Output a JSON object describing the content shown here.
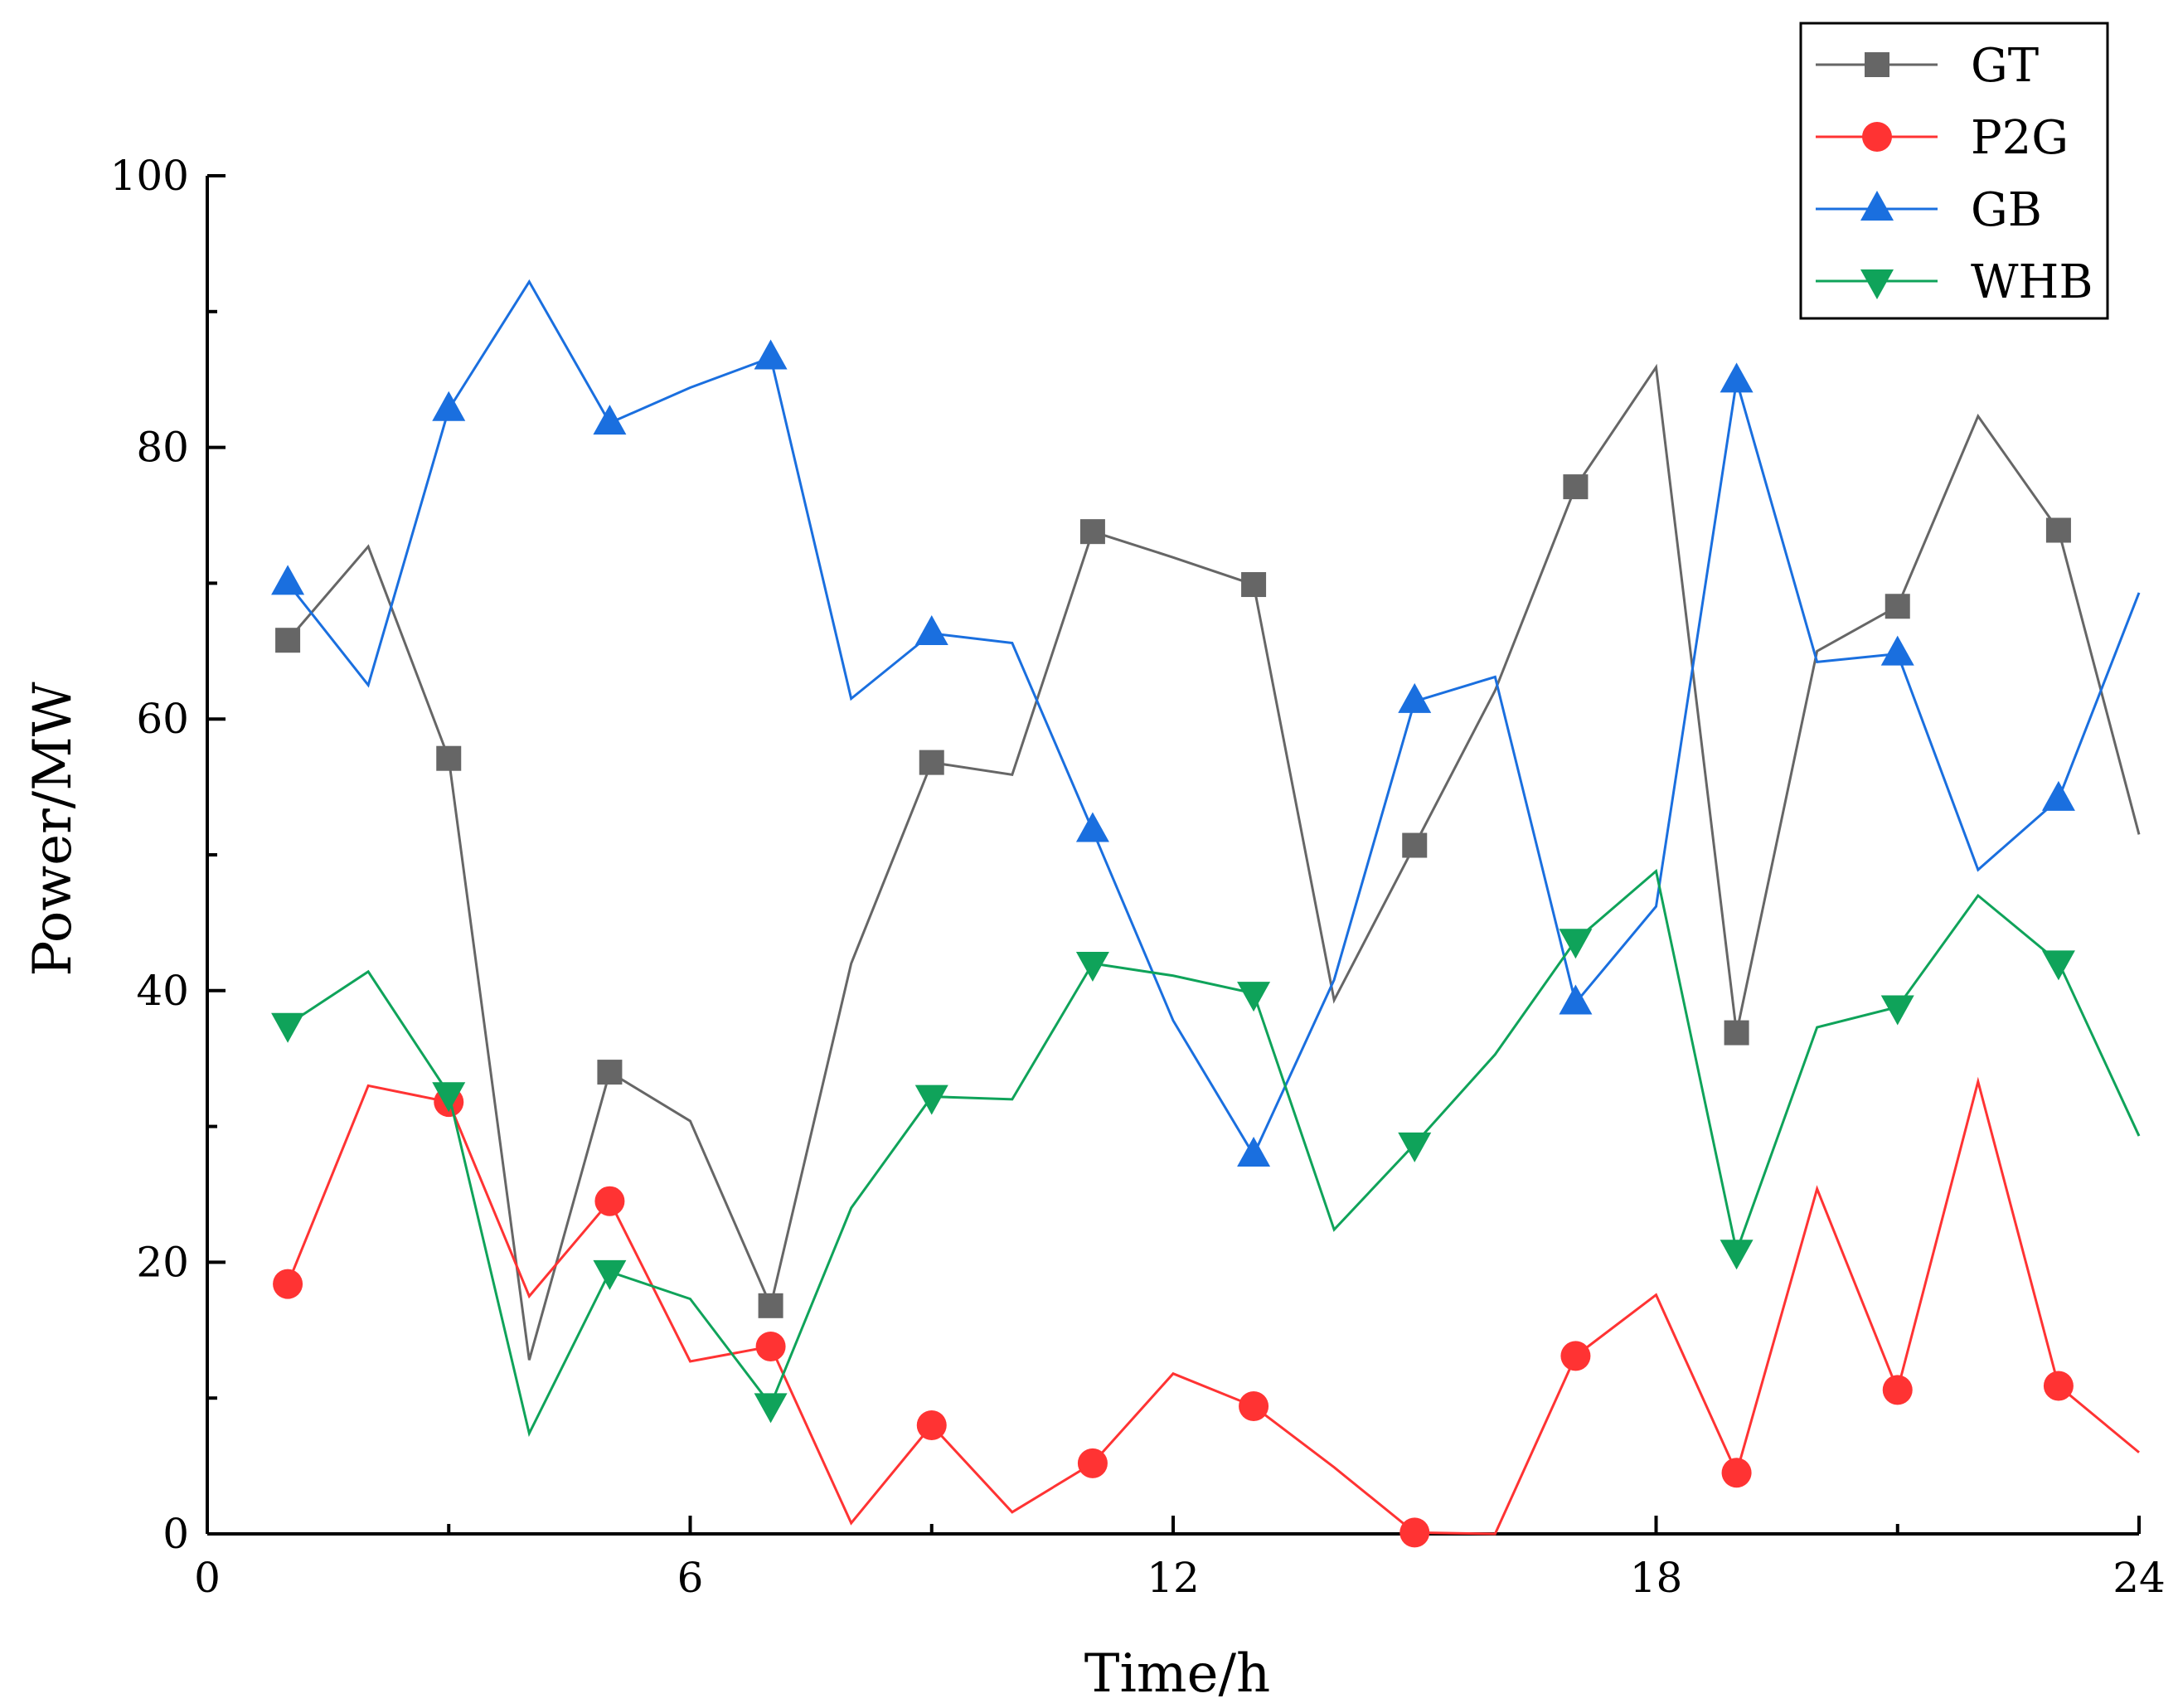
{
  "chart_data": {
    "type": "line",
    "title": "",
    "xlabel": "Time/h",
    "ylabel": "Power/MW",
    "xlim": [
      0,
      24
    ],
    "ylim": [
      0,
      100
    ],
    "xticks": [
      0,
      6,
      12,
      18,
      24
    ],
    "xtick_labels": [
      "0",
      "6",
      "12",
      "18",
      "24"
    ],
    "yticks": [
      0,
      20,
      40,
      60,
      80,
      100
    ],
    "ytick_labels": [
      "0",
      "20",
      "40",
      "60",
      "80",
      "100"
    ],
    "legend_position": "top-right",
    "grid": false,
    "x": [
      1,
      2,
      3,
      4,
      5,
      6,
      7,
      8,
      9,
      10,
      11,
      12,
      13,
      14,
      15,
      16,
      17,
      18,
      19,
      20,
      21,
      22,
      23,
      24
    ],
    "series": [
      {
        "name": "GT",
        "color": "#666666",
        "marker": "square",
        "values": [
          65.8,
          72.7,
          57.1,
          12.8,
          34.0,
          30.4,
          16.8,
          42.0,
          56.8,
          55.9,
          73.8,
          71.9,
          69.9,
          39.3,
          50.7,
          62.1,
          77.1,
          85.9,
          36.9,
          65.0,
          68.3,
          82.3,
          73.9,
          51.5
        ]
      },
      {
        "name": "P2G",
        "color": "#ff3333",
        "marker": "circle",
        "values": [
          18.4,
          33.0,
          31.8,
          17.5,
          24.5,
          12.7,
          13.8,
          0.8,
          8.0,
          1.6,
          5.2,
          11.8,
          9.4,
          4.9,
          0.1,
          0.0,
          13.1,
          17.6,
          4.5,
          25.4,
          10.6,
          33.3,
          10.9,
          6.0
        ]
      },
      {
        "name": "GB",
        "color": "#1a6fdf",
        "marker": "triangle-up",
        "values": [
          70.0,
          62.5,
          82.8,
          92.2,
          81.8,
          84.4,
          86.6,
          61.5,
          66.3,
          65.6,
          51.8,
          37.8,
          27.9,
          40.8,
          61.3,
          63.1,
          39.1,
          46.2,
          84.9,
          64.2,
          64.8,
          48.9,
          54.1,
          69.3
        ]
      },
      {
        "name": "WHB",
        "color": "#0fa35a",
        "marker": "triangle-down",
        "values": [
          37.5,
          41.4,
          32.4,
          7.4,
          19.3,
          17.3,
          9.5,
          24.0,
          32.2,
          32.0,
          42.0,
          41.1,
          39.8,
          22.4,
          28.7,
          35.3,
          43.7,
          48.8,
          20.8,
          37.3,
          38.8,
          47.0,
          42.1,
          29.3
        ]
      }
    ]
  }
}
